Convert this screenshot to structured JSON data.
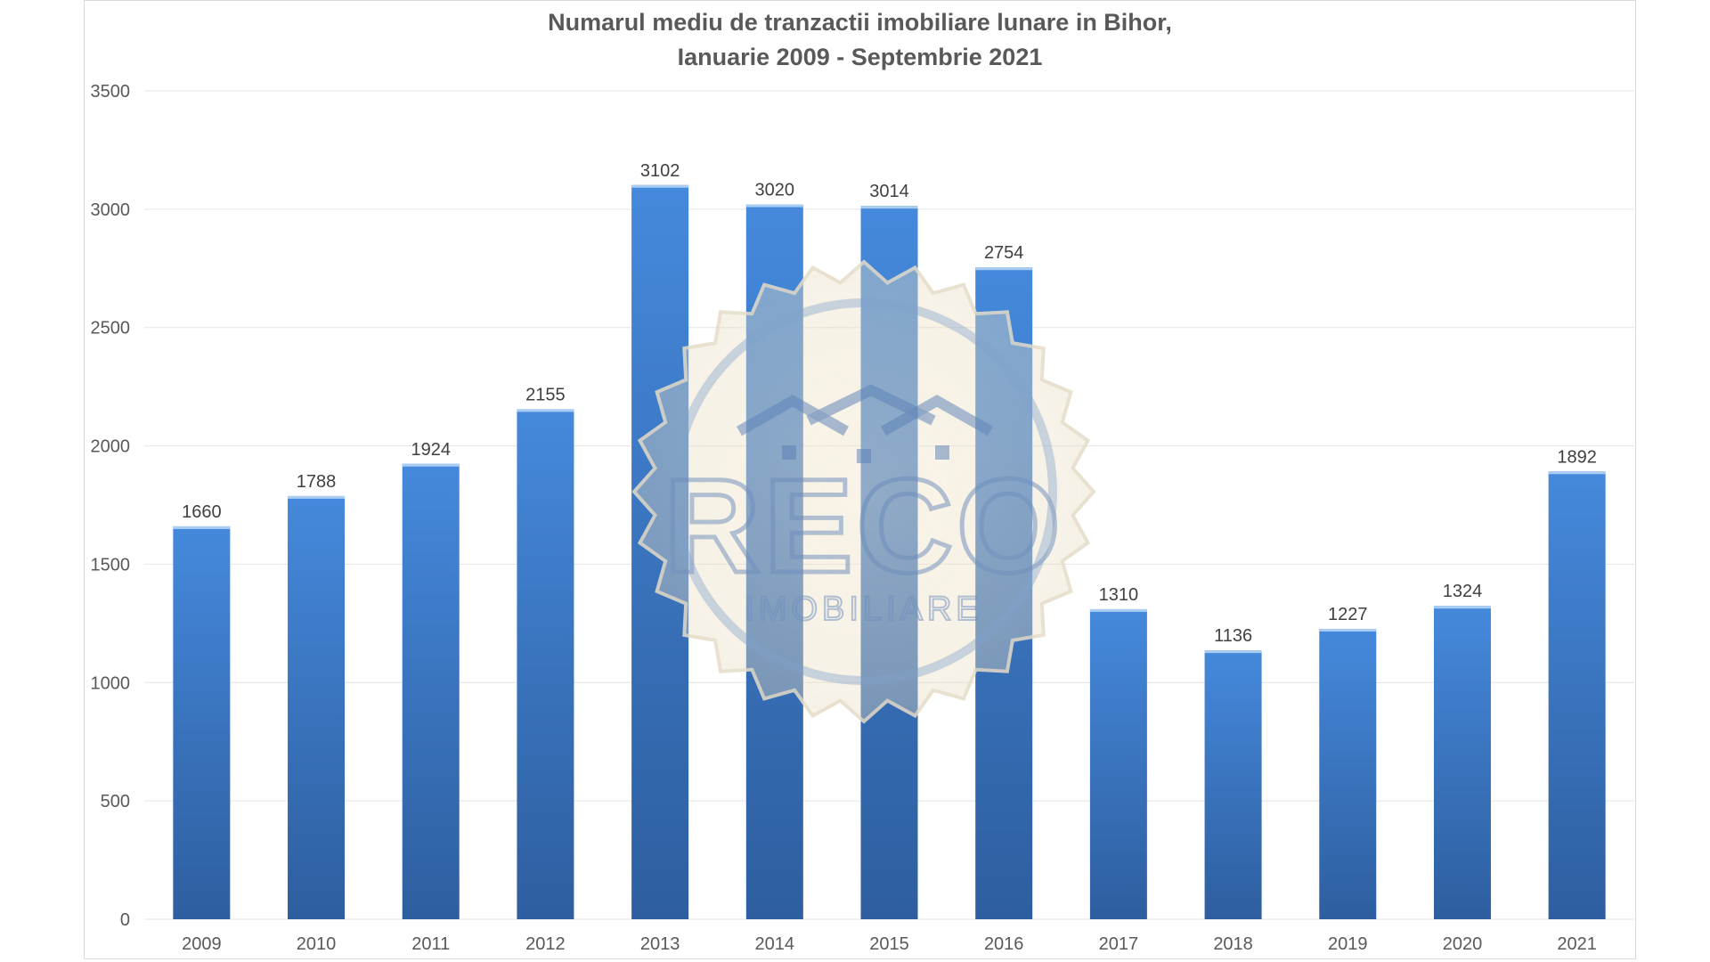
{
  "chart_data": {
    "type": "bar",
    "title": "Numarul mediu de tranzactii imobiliare lunare in Bihor,",
    "subtitle": "Ianuarie 2009 - Septembrie 2021",
    "xlabel": "",
    "ylabel": "",
    "categories": [
      "2009",
      "2010",
      "2011",
      "2012",
      "2013",
      "2014",
      "2015",
      "2016",
      "2017",
      "2018",
      "2019",
      "2020",
      "2021"
    ],
    "values": [
      1660,
      1788,
      1924,
      2155,
      3102,
      3020,
      3014,
      2754,
      1310,
      1136,
      1227,
      1324,
      1892
    ],
    "ylim": [
      0,
      3500
    ],
    "yticks": [
      "0",
      "500",
      "1000",
      "1500",
      "2000",
      "2500",
      "3000",
      "3500"
    ],
    "grid": true,
    "legend": "none",
    "data_labels": true,
    "colors": {
      "bar_top": "#4589dc",
      "bar_bottom": "#2e5e9f",
      "bar_cap": "#a9cdf2",
      "grid": "#e4e4e4",
      "text": "#595959"
    }
  },
  "watermark": {
    "name": "reco-imobiliare-seal",
    "text_main": "RECO",
    "text_sub": "IMOBILIARE"
  }
}
